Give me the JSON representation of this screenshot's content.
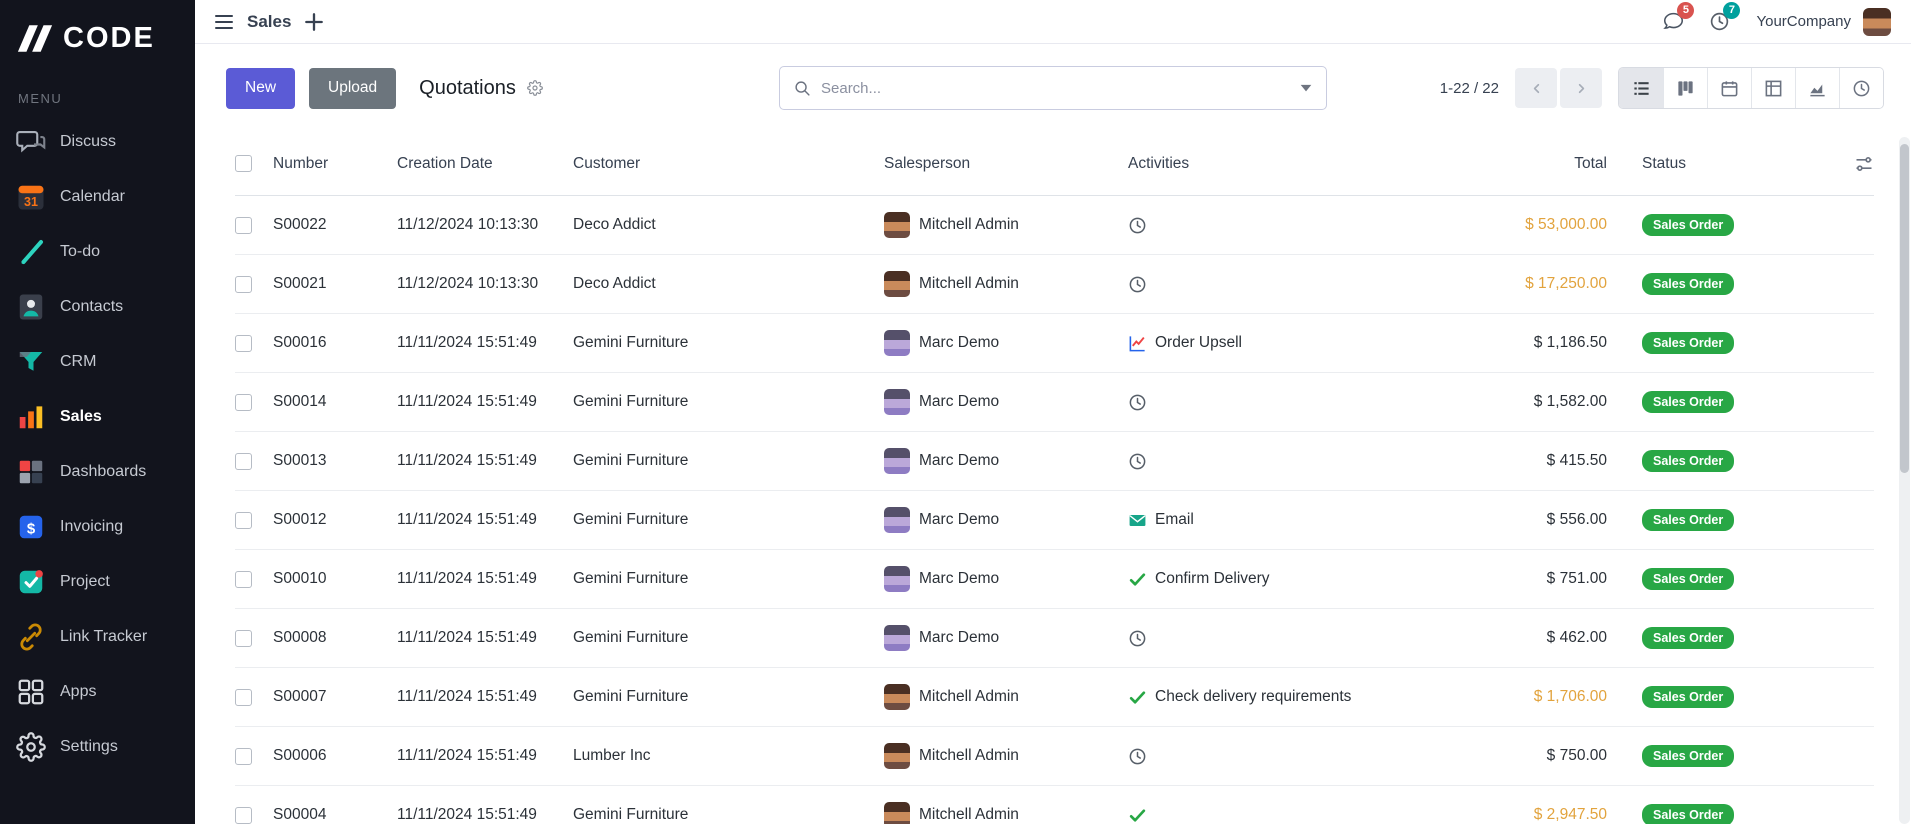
{
  "brand": {
    "logo_text": "CODE"
  },
  "sidebar": {
    "menu_label": "MENU",
    "items": [
      {
        "id": "discuss",
        "label": "Discuss",
        "icon": "discuss-icon",
        "active": false
      },
      {
        "id": "calendar",
        "label": "Calendar",
        "icon": "calendar-icon",
        "active": false
      },
      {
        "id": "todo",
        "label": "To-do",
        "icon": "todo-icon",
        "active": false
      },
      {
        "id": "contacts",
        "label": "Contacts",
        "icon": "contacts-icon",
        "active": false
      },
      {
        "id": "crm",
        "label": "CRM",
        "icon": "crm-icon",
        "active": false
      },
      {
        "id": "sales",
        "label": "Sales",
        "icon": "sales-icon",
        "active": true
      },
      {
        "id": "dashboards",
        "label": "Dashboards",
        "icon": "dashboards-icon",
        "active": false
      },
      {
        "id": "invoicing",
        "label": "Invoicing",
        "icon": "invoicing-icon",
        "active": false
      },
      {
        "id": "project",
        "label": "Project",
        "icon": "project-icon",
        "active": false
      },
      {
        "id": "link-tracker",
        "label": "Link Tracker",
        "icon": "link-tracker-icon",
        "active": false
      },
      {
        "id": "apps",
        "label": "Apps",
        "icon": "apps-icon",
        "active": false
      },
      {
        "id": "settings",
        "label": "Settings",
        "icon": "settings-icon",
        "active": false
      }
    ]
  },
  "topbar": {
    "app_name": "Sales",
    "company_name": "YourCompany",
    "messages_badge": "5",
    "activities_badge": "7"
  },
  "control_panel": {
    "new_label": "New",
    "upload_label": "Upload",
    "breadcrumb": "Quotations",
    "search_placeholder": "Search...",
    "pager_text": "1-22 / 22",
    "views": [
      {
        "id": "list",
        "icon": "list-view-icon",
        "active": true
      },
      {
        "id": "kanban",
        "icon": "kanban-view-icon",
        "active": false
      },
      {
        "id": "calendar",
        "icon": "calendar-view-icon",
        "active": false
      },
      {
        "id": "pivot",
        "icon": "pivot-view-icon",
        "active": false
      },
      {
        "id": "graph",
        "icon": "graph-view-icon",
        "active": false
      },
      {
        "id": "activity",
        "icon": "activity-view-icon",
        "active": false
      }
    ]
  },
  "table": {
    "columns": [
      "Number",
      "Creation Date",
      "Customer",
      "Salesperson",
      "Activities",
      "Total",
      "Status"
    ],
    "rows": [
      {
        "number": "S00022",
        "creation_date": "11/12/2024 10:13:30",
        "customer": "Deco Addict",
        "salesperson": "Mitchell Admin",
        "activity": {
          "icon": "clock-icon",
          "label": ""
        },
        "total": "$ 53,000.00",
        "total_highlight": true,
        "status": "Sales Order"
      },
      {
        "number": "S00021",
        "creation_date": "11/12/2024 10:13:30",
        "customer": "Deco Addict",
        "salesperson": "Mitchell Admin",
        "activity": {
          "icon": "clock-icon",
          "label": ""
        },
        "total": "$ 17,250.00",
        "total_highlight": true,
        "status": "Sales Order"
      },
      {
        "number": "S00016",
        "creation_date": "11/11/2024 15:51:49",
        "customer": "Gemini Furniture",
        "salesperson": "Marc Demo",
        "activity": {
          "icon": "chart-line-icon",
          "label": "Order Upsell"
        },
        "total": "$ 1,186.50",
        "total_highlight": false,
        "status": "Sales Order"
      },
      {
        "number": "S00014",
        "creation_date": "11/11/2024 15:51:49",
        "customer": "Gemini Furniture",
        "salesperson": "Marc Demo",
        "activity": {
          "icon": "clock-icon",
          "label": ""
        },
        "total": "$ 1,582.00",
        "total_highlight": false,
        "status": "Sales Order"
      },
      {
        "number": "S00013",
        "creation_date": "11/11/2024 15:51:49",
        "customer": "Gemini Furniture",
        "salesperson": "Marc Demo",
        "activity": {
          "icon": "clock-icon",
          "label": ""
        },
        "total": "$ 415.50",
        "total_highlight": false,
        "status": "Sales Order"
      },
      {
        "number": "S00012",
        "creation_date": "11/11/2024 15:51:49",
        "customer": "Gemini Furniture",
        "salesperson": "Marc Demo",
        "activity": {
          "icon": "envelope-icon",
          "label": "Email"
        },
        "total": "$ 556.00",
        "total_highlight": false,
        "status": "Sales Order"
      },
      {
        "number": "S00010",
        "creation_date": "11/11/2024 15:51:49",
        "customer": "Gemini Furniture",
        "salesperson": "Marc Demo",
        "activity": {
          "icon": "check-icon",
          "label": "Confirm Delivery"
        },
        "total": "$ 751.00",
        "total_highlight": false,
        "status": "Sales Order"
      },
      {
        "number": "S00008",
        "creation_date": "11/11/2024 15:51:49",
        "customer": "Gemini Furniture",
        "salesperson": "Marc Demo",
        "activity": {
          "icon": "clock-icon",
          "label": ""
        },
        "total": "$ 462.00",
        "total_highlight": false,
        "status": "Sales Order"
      },
      {
        "number": "S00007",
        "creation_date": "11/11/2024 15:51:49",
        "customer": "Gemini Furniture",
        "salesperson": "Mitchell Admin",
        "activity": {
          "icon": "check-icon",
          "label": "Check delivery requirements"
        },
        "total": "$ 1,706.00",
        "total_highlight": true,
        "status": "Sales Order"
      },
      {
        "number": "S00006",
        "creation_date": "11/11/2024 15:51:49",
        "customer": "Lumber Inc",
        "salesperson": "Mitchell Admin",
        "activity": {
          "icon": "clock-icon",
          "label": ""
        },
        "total": "$ 750.00",
        "total_highlight": false,
        "status": "Sales Order"
      },
      {
        "number": "S00004",
        "creation_date": "11/11/2024 15:51:49",
        "customer": "Gemini Furniture",
        "salesperson": "Mitchell Admin",
        "activity": {
          "icon": "check-icon",
          "label": ""
        },
        "total": "$ 2,947.50",
        "total_highlight": true,
        "status": "Sales Order"
      }
    ]
  },
  "people": {
    "Mitchell Admin": {
      "avatar_colors": [
        "#4a2f23",
        "#c98a5b",
        "#6d4c41"
      ]
    },
    "Marc Demo": {
      "avatar_colors": [
        "#55506a",
        "#bba8d9",
        "#8e7cc3"
      ]
    }
  },
  "colors": {
    "accent": "#5b5bd6",
    "upload_button": "#6c757d",
    "status_badge": "#28a745",
    "total_highlight": "#e2a33d",
    "badge_red": "#d9534f",
    "badge_teal": "#00a09d"
  }
}
